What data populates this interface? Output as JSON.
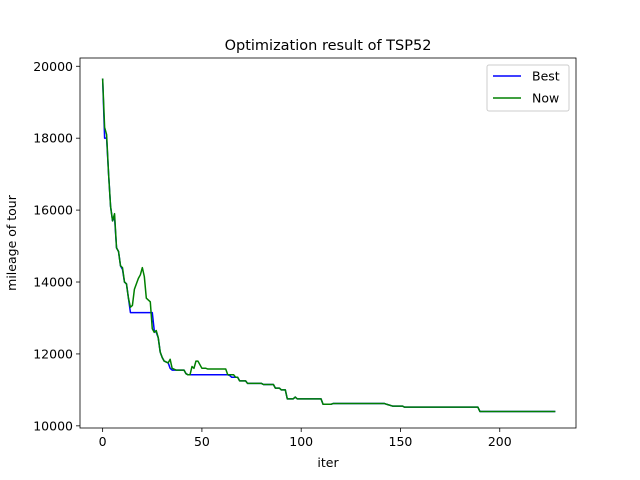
{
  "chart_data": {
    "type": "line",
    "title": "Optimization result of TSP52",
    "xlabel": "iter",
    "ylabel": "mileage of tour",
    "xlim": [
      -11.4,
      238.4
    ],
    "ylim": [
      9940,
      20230
    ],
    "xticks": [
      0,
      50,
      100,
      150,
      200
    ],
    "yticks": [
      10000,
      12000,
      14000,
      16000,
      18000,
      20000
    ],
    "grid": false,
    "legend_position": "top-right",
    "series": [
      {
        "name": "Best",
        "color": "#0000ff",
        "points": [
          [
            0,
            19660
          ],
          [
            1,
            18000
          ],
          [
            2,
            18000
          ],
          [
            3,
            17000
          ],
          [
            4,
            16100
          ],
          [
            5,
            15700
          ],
          [
            6,
            15800
          ],
          [
            7,
            14950
          ],
          [
            8,
            14850
          ],
          [
            9,
            14450
          ],
          [
            10,
            14350
          ],
          [
            11,
            14000
          ],
          [
            12,
            13950
          ],
          [
            13,
            13550
          ],
          [
            14,
            13150
          ],
          [
            15,
            13150
          ],
          [
            25,
            13150
          ],
          [
            26,
            12650
          ],
          [
            27,
            12600
          ],
          [
            28,
            12450
          ],
          [
            29,
            12050
          ],
          [
            30,
            11900
          ],
          [
            31,
            11800
          ],
          [
            33,
            11750
          ],
          [
            34,
            11600
          ],
          [
            35,
            11550
          ],
          [
            41,
            11550
          ],
          [
            42,
            11450
          ],
          [
            43,
            11420
          ],
          [
            63,
            11420
          ],
          [
            64,
            11400
          ],
          [
            65,
            11350
          ],
          [
            68,
            11350
          ],
          [
            69,
            11250
          ],
          [
            72,
            11250
          ],
          [
            73,
            11180
          ],
          [
            80,
            11180
          ],
          [
            81,
            11150
          ],
          [
            86,
            11150
          ],
          [
            87,
            11050
          ],
          [
            89,
            11050
          ],
          [
            90,
            11000
          ],
          [
            92,
            11000
          ],
          [
            93,
            10750
          ],
          [
            96,
            10750
          ],
          [
            97,
            10800
          ],
          [
            98,
            10750
          ],
          [
            110,
            10750
          ],
          [
            111,
            10600
          ],
          [
            115,
            10600
          ],
          [
            116,
            10620
          ],
          [
            142,
            10620
          ],
          [
            143,
            10600
          ],
          [
            146,
            10550
          ],
          [
            151,
            10550
          ],
          [
            152,
            10520
          ],
          [
            189,
            10520
          ],
          [
            190,
            10400
          ],
          [
            228,
            10400
          ]
        ]
      },
      {
        "name": "Now",
        "color": "#008000",
        "points": [
          [
            0,
            19660
          ],
          [
            1,
            18300
          ],
          [
            2,
            18100
          ],
          [
            3,
            17000
          ],
          [
            4,
            16100
          ],
          [
            5,
            15700
          ],
          [
            6,
            15900
          ],
          [
            7,
            14950
          ],
          [
            8,
            14850
          ],
          [
            9,
            14450
          ],
          [
            10,
            14400
          ],
          [
            11,
            14000
          ],
          [
            12,
            13950
          ],
          [
            13,
            13550
          ],
          [
            14,
            13300
          ],
          [
            15,
            13350
          ],
          [
            16,
            13800
          ],
          [
            18,
            14100
          ],
          [
            19,
            14200
          ],
          [
            20,
            14400
          ],
          [
            21,
            14150
          ],
          [
            22,
            13550
          ],
          [
            24,
            13450
          ],
          [
            25,
            12700
          ],
          [
            26,
            12600
          ],
          [
            27,
            12650
          ],
          [
            28,
            12450
          ],
          [
            29,
            12050
          ],
          [
            30,
            11900
          ],
          [
            31,
            11800
          ],
          [
            33,
            11750
          ],
          [
            34,
            11850
          ],
          [
            35,
            11600
          ],
          [
            37,
            11550
          ],
          [
            41,
            11550
          ],
          [
            42,
            11450
          ],
          [
            43,
            11420
          ],
          [
            44,
            11420
          ],
          [
            45,
            11650
          ],
          [
            46,
            11600
          ],
          [
            47,
            11800
          ],
          [
            48,
            11800
          ],
          [
            50,
            11600
          ],
          [
            52,
            11600
          ],
          [
            53,
            11580
          ],
          [
            62,
            11580
          ],
          [
            63,
            11420
          ],
          [
            66,
            11420
          ],
          [
            67,
            11350
          ],
          [
            68,
            11350
          ],
          [
            69,
            11250
          ],
          [
            72,
            11250
          ],
          [
            73,
            11180
          ],
          [
            80,
            11180
          ],
          [
            81,
            11150
          ],
          [
            86,
            11150
          ],
          [
            87,
            11050
          ],
          [
            89,
            11050
          ],
          [
            90,
            11000
          ],
          [
            92,
            11000
          ],
          [
            93,
            10750
          ],
          [
            96,
            10750
          ],
          [
            97,
            10800
          ],
          [
            98,
            10750
          ],
          [
            110,
            10750
          ],
          [
            111,
            10600
          ],
          [
            115,
            10600
          ],
          [
            116,
            10620
          ],
          [
            142,
            10620
          ],
          [
            143,
            10600
          ],
          [
            146,
            10550
          ],
          [
            151,
            10550
          ],
          [
            152,
            10520
          ],
          [
            189,
            10520
          ],
          [
            190,
            10400
          ],
          [
            228,
            10400
          ]
        ]
      }
    ]
  }
}
